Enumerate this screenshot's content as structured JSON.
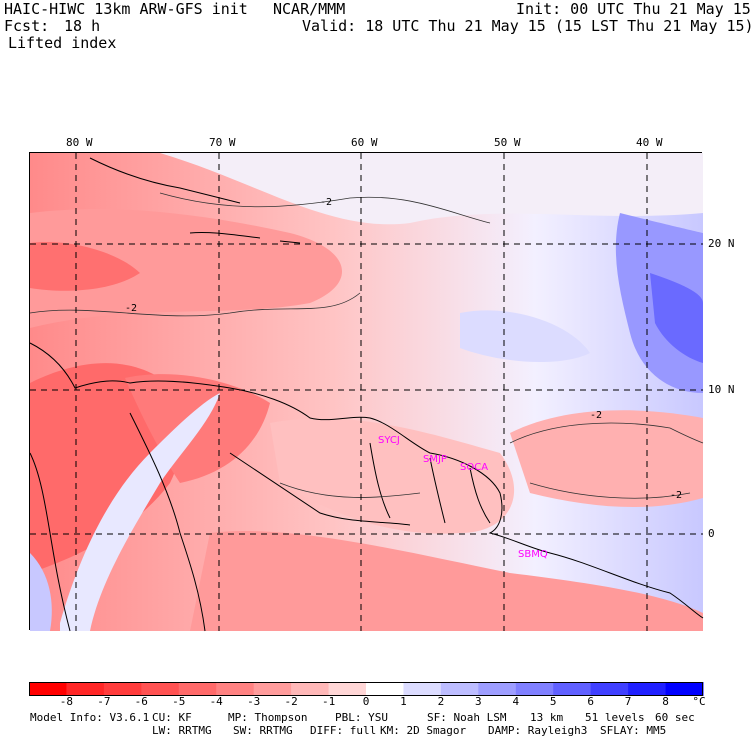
{
  "header": {
    "model": "HAIC-HIWC 13km ARW-GFS init",
    "org": "NCAR/MMM",
    "init": "Init: 00 UTC Thu 21 May 15",
    "fcst_label": "Fcst:",
    "fcst_value": "18 h",
    "valid": "Valid: 18 UTC Thu 21 May 15 (15 LST Thu 21 May 15)",
    "field": "Lifted index"
  },
  "map": {
    "lon_labels": [
      "80 W",
      "70 W",
      "60 W",
      "50 W",
      "40 W"
    ],
    "lat_labels": [
      "20 N",
      "10 N",
      "0"
    ],
    "stations": [
      "SYCJ",
      "SMJP",
      "SOCA",
      "SBMQ"
    ],
    "contour_labels": [
      "-2",
      "-2",
      "-2",
      "-2"
    ],
    "station_color": "#ff00ff"
  },
  "colorbar": {
    "ticks": [
      "-8",
      "-7",
      "-6",
      "-5",
      "-4",
      "-3",
      "-2",
      "-1",
      "0",
      "1",
      "2",
      "3",
      "4",
      "5",
      "6",
      "7",
      "8"
    ],
    "unit": "°C",
    "colors": [
      "#ff0000",
      "#ff2626",
      "#ff3c3c",
      "#ff5252",
      "#ff6a6a",
      "#ff8282",
      "#ff9c9c",
      "#ffb8b8",
      "#ffd6d6",
      "#ffffff",
      "#dcdcff",
      "#bdbdff",
      "#9e9eff",
      "#8080ff",
      "#6060ff",
      "#4040ff",
      "#2020ff",
      "#0000ff"
    ]
  },
  "footer": {
    "line1": [
      "Model Info: V3.6.1",
      "CU: KF",
      "MP: Thompson",
      "PBL: YSU",
      "SF: Noah LSM",
      "13 km",
      "51 levels",
      "60 sec"
    ],
    "line2": [
      "LW: RRTMG",
      "SW: RRTMG",
      "DIFF: full",
      "KM: 2D Smagor",
      "DAMP: Rayleigh3",
      "SFLAY: MM5"
    ]
  }
}
